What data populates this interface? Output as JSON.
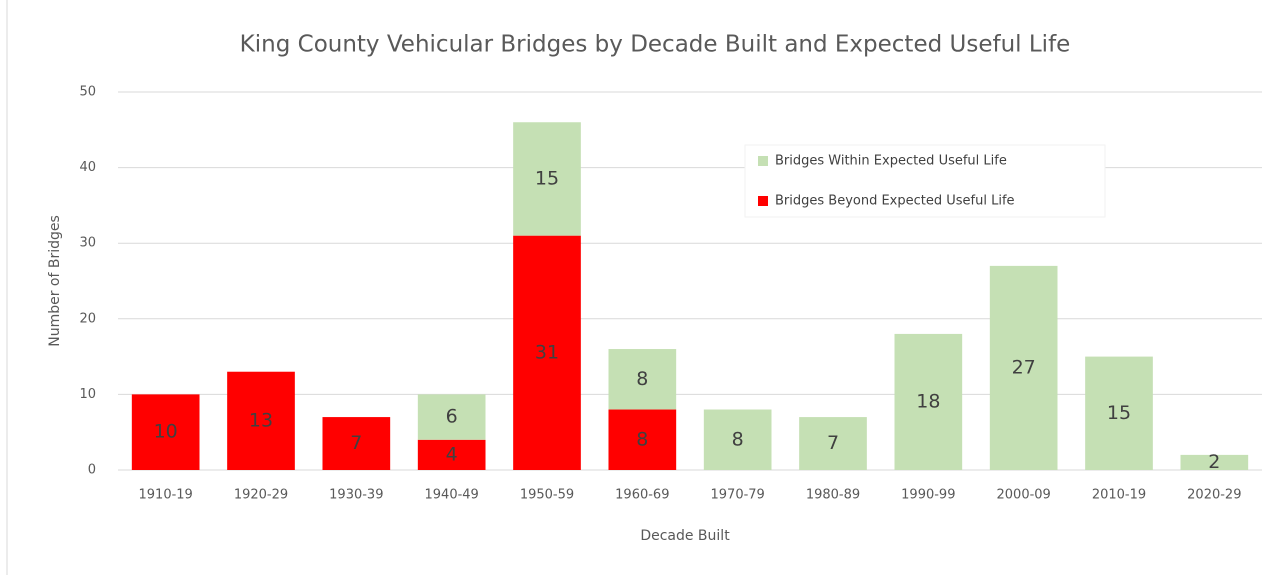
{
  "chart_data": {
    "type": "stacked_bar",
    "title": "King County Vehicular Bridges by Decade Built and Expected Useful Life",
    "x_label": "Decade Built",
    "y_label": "Number of Bridges",
    "categories": [
      "1910-19",
      "1920-29",
      "1930-39",
      "1940-49",
      "1950-59",
      "1960-69",
      "1970-79",
      "1980-89",
      "1990-99",
      "2000-09",
      "2010-19",
      "2020-29"
    ],
    "series": [
      {
        "name": "Bridges Beyond Expected Useful Life",
        "color": "#ff0000",
        "values": [
          10,
          13,
          7,
          4,
          31,
          8,
          null,
          null,
          null,
          null,
          null,
          null
        ]
      },
      {
        "name": "Bridges Within Expected Useful Life",
        "color": "#c5e0b4",
        "values": [
          null,
          null,
          null,
          6,
          15,
          8,
          8,
          7,
          18,
          27,
          15,
          2
        ]
      }
    ],
    "ylim": [
      0,
      50
    ],
    "yticks": [
      0,
      10,
      20,
      30,
      40,
      50
    ],
    "grid": true,
    "legend": "upper right"
  }
}
